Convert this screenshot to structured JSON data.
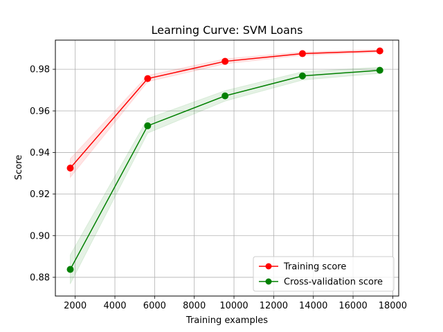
{
  "chart_data": {
    "type": "line",
    "title": "Learning Curve: SVM Loans",
    "xlabel": "Training examples",
    "ylabel": "Score",
    "xlim": [
      1000,
      18300
    ],
    "ylim": [
      0.871,
      0.994
    ],
    "xticks": [
      2000,
      4000,
      6000,
      8000,
      10000,
      12000,
      14000,
      16000,
      18000
    ],
    "yticks": [
      0.88,
      0.9,
      0.92,
      0.94,
      0.96,
      0.98
    ],
    "ytick_labels": [
      "0.88",
      "0.90",
      "0.92",
      "0.94",
      "0.96",
      "0.98"
    ],
    "grid": true,
    "legend_position": "lower-right",
    "x": [
      1750,
      5650,
      9550,
      13450,
      17350
    ],
    "series": [
      {
        "name": "Training score",
        "color": "#ff0000",
        "fill_color": "#ff0000",
        "values": [
          0.9325,
          0.9755,
          0.9838,
          0.9875,
          0.9888
        ],
        "std": [
          0.0045,
          0.0015,
          0.0012,
          0.0008,
          0.0007
        ]
      },
      {
        "name": "Cross-validation score",
        "color": "#008000",
        "fill_color": "#008000",
        "values": [
          0.8838,
          0.9528,
          0.9672,
          0.9768,
          0.9795
        ],
        "std": [
          0.007,
          0.0035,
          0.0025,
          0.002,
          0.0015
        ]
      }
    ]
  }
}
